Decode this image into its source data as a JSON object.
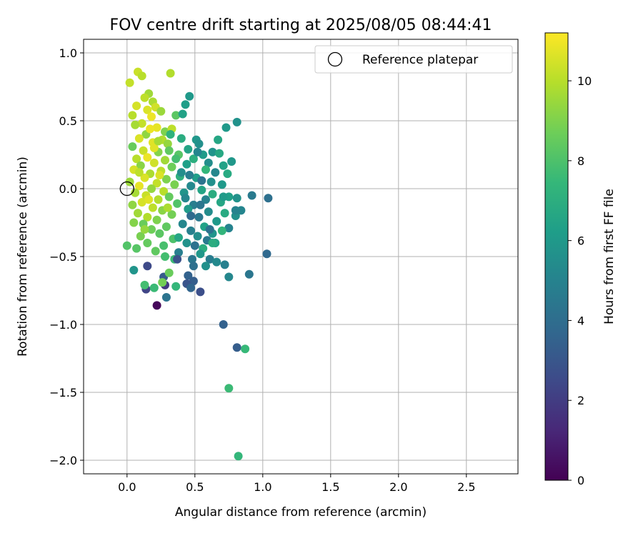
{
  "chart_data": {
    "type": "scatter",
    "title": "FOV centre drift starting at 2025/08/05 08:44:41",
    "xlabel": "Angular distance from reference (arcmin)",
    "ylabel": "Rotation from reference (arcmin)",
    "xlim": [
      -0.32,
      2.88
    ],
    "ylim": [
      -2.1,
      1.1
    ],
    "xticks": [
      0.0,
      0.5,
      1.0,
      1.5,
      2.0,
      2.5
    ],
    "xtick_labels": [
      "0.0",
      "0.5",
      "1.0",
      "1.5",
      "2.0",
      "2.5"
    ],
    "yticks": [
      1.0,
      0.5,
      0.0,
      -0.5,
      -1.0,
      -1.5,
      -2.0
    ],
    "ytick_labels": [
      "1.0",
      "0.5",
      "0.0",
      "−0.5",
      "−1.0",
      "−1.5",
      "−2.0"
    ],
    "grid": true,
    "legend": {
      "position": "top-right",
      "entries": [
        "Reference platepar"
      ]
    },
    "reference_point": {
      "x": 0.0,
      "y": 0.0,
      "marker": "open-circle"
    },
    "colorbar": {
      "label": "Hours from first FF file",
      "range": [
        0,
        11.2
      ],
      "ticks": [
        0,
        2,
        4,
        6,
        8,
        10
      ],
      "tick_labels": [
        "0",
        "2",
        "4",
        "6",
        "8",
        "10"
      ],
      "colormap": "viridis"
    },
    "colormap_stops": [
      "#440154",
      "#482878",
      "#3e4a89",
      "#31688e",
      "#26828e",
      "#1f9e89",
      "#35b779",
      "#6ece58",
      "#b5de2b",
      "#fde725"
    ],
    "points": [
      [
        0.08,
        0.86,
        10.3
      ],
      [
        0.11,
        0.83,
        10.0
      ],
      [
        0.32,
        0.85,
        9.9
      ],
      [
        0.02,
        0.78,
        10.2
      ],
      [
        0.16,
        0.7,
        9.6
      ],
      [
        0.13,
        0.67,
        10.1
      ],
      [
        0.19,
        0.64,
        9.8
      ],
      [
        0.07,
        0.61,
        10.5
      ],
      [
        0.21,
        0.6,
        10.4
      ],
      [
        0.15,
        0.58,
        10.6
      ],
      [
        0.04,
        0.54,
        10.0
      ],
      [
        0.25,
        0.57,
        9.5
      ],
      [
        0.18,
        0.53,
        10.9
      ],
      [
        0.36,
        0.54,
        8.3
      ],
      [
        0.11,
        0.48,
        10.2
      ],
      [
        0.28,
        0.42,
        9.0
      ],
      [
        0.33,
        0.44,
        10.1
      ],
      [
        0.06,
        0.47,
        9.7
      ],
      [
        0.22,
        0.45,
        10.8
      ],
      [
        0.14,
        0.4,
        9.3
      ],
      [
        0.09,
        0.37,
        10.6
      ],
      [
        0.26,
        0.36,
        9.9
      ],
      [
        0.3,
        0.33,
        9.4
      ],
      [
        0.19,
        0.34,
        10.7
      ],
      [
        0.04,
        0.31,
        8.6
      ],
      [
        0.12,
        0.28,
        10.3
      ],
      [
        0.23,
        0.27,
        9.1
      ],
      [
        0.38,
        0.25,
        8.2
      ],
      [
        0.15,
        0.23,
        10.9
      ],
      [
        0.07,
        0.22,
        10.0
      ],
      [
        0.28,
        0.21,
        9.6
      ],
      [
        0.2,
        0.19,
        10.4
      ],
      [
        0.1,
        0.17,
        9.2
      ],
      [
        0.33,
        0.16,
        8.7
      ],
      [
        0.05,
        0.14,
        10.5
      ],
      [
        0.25,
        0.13,
        10.1
      ],
      [
        0.17,
        0.11,
        9.8
      ],
      [
        0.13,
        0.08,
        10.6
      ],
      [
        0.29,
        0.07,
        9.0
      ],
      [
        0.02,
        0.05,
        9.5
      ],
      [
        0.22,
        0.04,
        10.2
      ],
      [
        0.35,
        0.03,
        8.9
      ],
      [
        0.09,
        0.02,
        10.8
      ],
      [
        0.18,
        0.0,
        9.4
      ],
      [
        0.27,
        -0.02,
        10.0
      ],
      [
        0.06,
        -0.03,
        9.7
      ],
      [
        0.14,
        -0.05,
        10.3
      ],
      [
        0.31,
        -0.06,
        8.5
      ],
      [
        0.23,
        -0.08,
        9.9
      ],
      [
        0.11,
        -0.1,
        10.5
      ],
      [
        0.37,
        -0.11,
        8.1
      ],
      [
        0.04,
        -0.12,
        9.3
      ],
      [
        0.19,
        -0.14,
        10.1
      ],
      [
        0.26,
        -0.16,
        9.2
      ],
      [
        0.08,
        -0.18,
        9.6
      ],
      [
        0.33,
        -0.19,
        8.8
      ],
      [
        0.15,
        -0.21,
        9.9
      ],
      [
        0.22,
        -0.23,
        9.0
      ],
      [
        0.12,
        -0.26,
        8.6
      ],
      [
        0.29,
        -0.28,
        8.4
      ],
      [
        0.05,
        -0.25,
        9.1
      ],
      [
        0.18,
        -0.3,
        8.7
      ],
      [
        0.24,
        -0.33,
        8.3
      ],
      [
        0.1,
        -0.35,
        8.9
      ],
      [
        0.34,
        -0.37,
        8.0
      ],
      [
        0.15,
        -0.4,
        8.5
      ],
      [
        0.27,
        -0.42,
        7.9
      ],
      [
        0.07,
        -0.44,
        8.2
      ],
      [
        0.21,
        -0.46,
        8.4
      ],
      [
        0.0,
        -0.42,
        8.1
      ],
      [
        0.28,
        -0.5,
        7.8
      ],
      [
        0.13,
        -0.3,
        9.4
      ],
      [
        0.2,
        0.3,
        10.7
      ],
      [
        0.17,
        0.44,
        10.9
      ],
      [
        0.24,
        0.1,
        10.6
      ],
      [
        0.3,
        -0.14,
        9.8
      ],
      [
        0.16,
        -0.08,
        10.7
      ],
      [
        0.09,
        0.12,
        10.1
      ],
      [
        0.43,
        0.62,
        6.2
      ],
      [
        0.46,
        0.68,
        6.0
      ],
      [
        0.41,
        0.55,
        6.4
      ],
      [
        0.32,
        0.4,
        7.2
      ],
      [
        0.4,
        0.37,
        6.9
      ],
      [
        0.51,
        0.36,
        5.9
      ],
      [
        0.53,
        0.33,
        5.6
      ],
      [
        0.45,
        0.29,
        6.5
      ],
      [
        0.56,
        0.25,
        6.1
      ],
      [
        0.63,
        0.27,
        5.8
      ],
      [
        0.68,
        0.26,
        6.7
      ],
      [
        0.67,
        0.36,
        6.6
      ],
      [
        0.73,
        0.45,
        6.0
      ],
      [
        0.81,
        0.49,
        5.7
      ],
      [
        0.49,
        0.22,
        7.0
      ],
      [
        0.44,
        0.18,
        6.3
      ],
      [
        0.6,
        0.19,
        5.5
      ],
      [
        0.71,
        0.17,
        6.4
      ],
      [
        0.77,
        0.2,
        5.9
      ],
      [
        0.58,
        0.14,
        7.4
      ],
      [
        0.65,
        0.12,
        5.2
      ],
      [
        0.74,
        0.11,
        6.8
      ],
      [
        0.39,
        0.09,
        7.1
      ],
      [
        0.51,
        0.08,
        6.2
      ],
      [
        0.62,
        0.05,
        5.6
      ],
      [
        0.7,
        0.03,
        6.0
      ],
      [
        0.47,
        0.02,
        5.3
      ],
      [
        0.55,
        -0.01,
        6.5
      ],
      [
        0.42,
        -0.03,
        5.8
      ],
      [
        0.63,
        -0.04,
        6.9
      ],
      [
        0.75,
        -0.06,
        6.3
      ],
      [
        0.81,
        -0.07,
        5.7
      ],
      [
        0.58,
        -0.08,
        5.0
      ],
      [
        0.69,
        -0.1,
        6.6
      ],
      [
        0.49,
        -0.12,
        4.8
      ],
      [
        0.45,
        -0.15,
        6.1
      ],
      [
        0.6,
        -0.17,
        5.4
      ],
      [
        0.72,
        -0.18,
        6.8
      ],
      [
        0.8,
        -0.2,
        5.6
      ],
      [
        0.53,
        -0.21,
        4.5
      ],
      [
        0.66,
        -0.24,
        6.0
      ],
      [
        0.41,
        -0.26,
        5.2
      ],
      [
        0.57,
        -0.28,
        6.4
      ],
      [
        0.75,
        -0.29,
        5.0
      ],
      [
        0.84,
        -0.16,
        5.1
      ],
      [
        0.47,
        -0.31,
        4.9
      ],
      [
        0.63,
        -0.33,
        5.8
      ],
      [
        0.7,
        -0.31,
        7.3
      ],
      [
        0.52,
        -0.35,
        5.5
      ],
      [
        0.38,
        -0.36,
        6.6
      ],
      [
        0.59,
        -0.38,
        4.6
      ],
      [
        0.44,
        -0.4,
        5.7
      ],
      [
        0.65,
        -0.4,
        6.5
      ],
      [
        0.5,
        -0.42,
        4.2
      ],
      [
        0.56,
        -0.44,
        7.0
      ],
      [
        0.38,
        -0.47,
        4.8
      ],
      [
        0.48,
        -0.52,
        4.4
      ],
      [
        0.54,
        -0.48,
        5.9
      ],
      [
        0.61,
        -0.52,
        4.7
      ],
      [
        0.66,
        -0.54,
        5.3
      ],
      [
        0.58,
        -0.57,
        5.6
      ],
      [
        0.72,
        -0.56,
        4.9
      ],
      [
        0.49,
        -0.57,
        4.1
      ],
      [
        0.35,
        -0.52,
        7.6
      ],
      [
        0.92,
        -0.05,
        4.6
      ],
      [
        1.04,
        -0.07,
        4.1
      ],
      [
        0.8,
        -0.16,
        5.0
      ],
      [
        0.71,
        -0.06,
        6.1
      ],
      [
        0.55,
        0.06,
        4.3
      ],
      [
        0.47,
        -0.2,
        3.9
      ],
      [
        0.54,
        -0.12,
        4.4
      ],
      [
        0.43,
        -0.07,
        5.2
      ],
      [
        0.4,
        0.12,
        5.5
      ],
      [
        0.61,
        -0.3,
        4.2
      ],
      [
        0.27,
        -0.65,
        3.2
      ],
      [
        0.15,
        -0.57,
        2.5
      ],
      [
        0.37,
        -0.52,
        2.8
      ],
      [
        0.45,
        -0.64,
        3.5
      ],
      [
        0.49,
        -0.68,
        3.3
      ],
      [
        0.44,
        -0.7,
        2.9
      ],
      [
        0.47,
        -0.73,
        3.6
      ],
      [
        0.54,
        -0.76,
        2.7
      ],
      [
        0.29,
        -0.8,
        4.3
      ],
      [
        0.28,
        -0.71,
        1.9
      ],
      [
        0.14,
        -0.74,
        2.3
      ],
      [
        0.22,
        -0.86,
        0.2
      ],
      [
        0.13,
        -0.71,
        7.8
      ],
      [
        0.2,
        -0.73,
        7.6
      ],
      [
        0.31,
        -0.62,
        8.6
      ],
      [
        0.36,
        -0.72,
        7.4
      ],
      [
        0.26,
        -0.69,
        8.8
      ],
      [
        0.05,
        -0.6,
        5.8
      ],
      [
        0.75,
        -0.65,
        5.2
      ],
      [
        0.9,
        -0.63,
        4.4
      ],
      [
        1.03,
        -0.48,
        3.8
      ],
      [
        0.71,
        -1.0,
        3.5
      ],
      [
        0.81,
        -1.17,
        3.3
      ],
      [
        0.87,
        -1.18,
        7.5
      ],
      [
        0.75,
        -1.47,
        7.6
      ],
      [
        0.82,
        -1.97,
        7.4
      ],
      [
        0.63,
        -0.4,
        6.9
      ],
      [
        0.52,
        0.27,
        5.1
      ],
      [
        0.46,
        0.1,
        4.8
      ],
      [
        0.36,
        0.22,
        7.8
      ],
      [
        0.31,
        0.28,
        8.4
      ],
      [
        0.23,
        0.35,
        9.7
      ]
    ]
  }
}
